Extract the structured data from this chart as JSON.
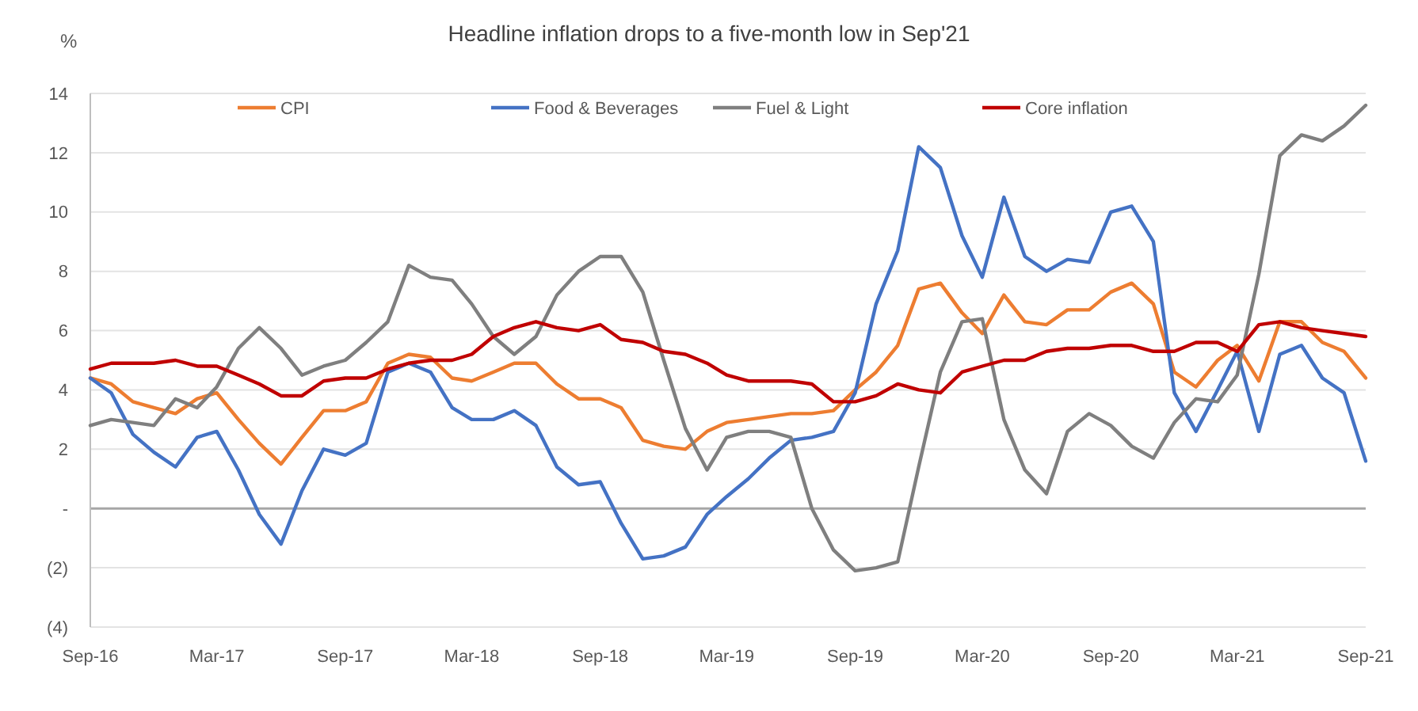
{
  "chart_data": {
    "type": "line",
    "title": "Headline inflation drops to a five-month low in Sep'21",
    "ylabel": "%",
    "x": [
      "2016-09",
      "2016-10",
      "2016-11",
      "2016-12",
      "2017-01",
      "2017-02",
      "2017-03",
      "2017-04",
      "2017-05",
      "2017-06",
      "2017-07",
      "2017-08",
      "2017-09",
      "2017-10",
      "2017-11",
      "2017-12",
      "2018-01",
      "2018-02",
      "2018-03",
      "2018-04",
      "2018-05",
      "2018-06",
      "2018-07",
      "2018-08",
      "2018-09",
      "2018-10",
      "2018-11",
      "2018-12",
      "2019-01",
      "2019-02",
      "2019-03",
      "2019-04",
      "2019-05",
      "2019-06",
      "2019-07",
      "2019-08",
      "2019-09",
      "2019-10",
      "2019-11",
      "2019-12",
      "2020-01",
      "2020-02",
      "2020-03",
      "2020-04",
      "2020-05",
      "2020-06",
      "2020-07",
      "2020-08",
      "2020-09",
      "2020-10",
      "2020-11",
      "2020-12",
      "2021-01",
      "2021-02",
      "2021-03",
      "2021-04",
      "2021-05",
      "2021-06",
      "2021-07",
      "2021-08",
      "2021-09"
    ],
    "series": [
      {
        "name": "CPI",
        "color": "#ed7d31",
        "values": [
          4.4,
          4.2,
          3.6,
          3.4,
          3.2,
          3.7,
          3.9,
          3.0,
          2.2,
          1.5,
          2.4,
          3.3,
          3.3,
          3.6,
          4.9,
          5.2,
          5.1,
          4.4,
          4.3,
          4.6,
          4.9,
          4.9,
          4.2,
          3.7,
          3.7,
          3.4,
          2.3,
          2.1,
          2.0,
          2.6,
          2.9,
          3.0,
          3.1,
          3.2,
          3.2,
          3.3,
          4.0,
          4.6,
          5.5,
          7.4,
          7.6,
          6.6,
          5.9,
          7.2,
          6.3,
          6.2,
          6.7,
          6.7,
          7.3,
          7.6,
          6.9,
          4.6,
          4.1,
          5.0,
          5.5,
          4.3,
          6.3,
          6.3,
          5.6,
          5.3,
          4.4
        ]
      },
      {
        "name": "Food & Beverages",
        "color": "#4472c4",
        "values": [
          4.4,
          3.9,
          2.5,
          1.9,
          1.4,
          2.4,
          2.6,
          1.3,
          -0.2,
          -1.2,
          0.6,
          2.0,
          1.8,
          2.2,
          4.6,
          4.9,
          4.6,
          3.4,
          3.0,
          3.0,
          3.3,
          2.8,
          1.4,
          0.8,
          0.9,
          -0.5,
          -1.7,
          -1.6,
          -1.3,
          -0.2,
          0.4,
          1.0,
          1.7,
          2.3,
          2.4,
          2.6,
          3.9,
          6.9,
          8.7,
          12.2,
          11.5,
          9.2,
          7.8,
          10.5,
          8.5,
          8.0,
          8.4,
          8.3,
          10.0,
          10.2,
          9.0,
          3.9,
          2.6,
          4.0,
          5.3,
          2.6,
          5.2,
          5.5,
          4.4,
          3.9,
          1.6
        ]
      },
      {
        "name": "Fuel & Light",
        "color": "#7f7f7f",
        "values": [
          2.8,
          3.0,
          2.9,
          2.8,
          3.7,
          3.4,
          4.1,
          5.4,
          6.1,
          5.4,
          4.5,
          4.8,
          5.0,
          5.6,
          6.3,
          8.2,
          7.8,
          7.7,
          6.9,
          5.8,
          5.2,
          5.8,
          7.2,
          8.0,
          8.5,
          8.5,
          7.3,
          5.0,
          2.7,
          1.3,
          2.4,
          2.6,
          2.6,
          2.4,
          0.0,
          -1.4,
          -2.1,
          -2.0,
          -1.8,
          1.4,
          4.6,
          6.3,
          6.4,
          3.0,
          1.3,
          0.5,
          2.6,
          3.2,
          2.8,
          2.1,
          1.7,
          2.9,
          3.7,
          3.6,
          4.5,
          7.9,
          11.9,
          12.6,
          12.4,
          12.9,
          13.6
        ]
      },
      {
        "name": "Core inflation",
        "color": "#c00000",
        "values": [
          4.7,
          4.9,
          4.9,
          4.9,
          5.0,
          4.8,
          4.8,
          4.5,
          4.2,
          3.8,
          3.8,
          4.3,
          4.4,
          4.4,
          4.7,
          4.9,
          5.0,
          5.0,
          5.2,
          5.8,
          6.1,
          6.3,
          6.1,
          6.0,
          6.2,
          5.7,
          5.6,
          5.3,
          5.2,
          4.9,
          4.5,
          4.3,
          4.3,
          4.3,
          4.2,
          3.6,
          3.6,
          3.8,
          4.2,
          4.0,
          3.9,
          4.6,
          4.8,
          5.0,
          5.0,
          5.3,
          5.4,
          5.4,
          5.5,
          5.5,
          5.3,
          5.3,
          5.6,
          5.6,
          5.3,
          6.2,
          6.3,
          6.1,
          6.0,
          5.9,
          5.8
        ]
      }
    ],
    "xlim": [
      "2016-09",
      "2021-09"
    ],
    "xticks": [
      {
        "value": "2016-09",
        "label": "Sep-16"
      },
      {
        "value": "2017-03",
        "label": "Mar-17"
      },
      {
        "value": "2017-09",
        "label": "Sep-17"
      },
      {
        "value": "2018-03",
        "label": "Mar-18"
      },
      {
        "value": "2018-09",
        "label": "Sep-18"
      },
      {
        "value": "2019-03",
        "label": "Mar-19"
      },
      {
        "value": "2019-09",
        "label": "Sep-19"
      },
      {
        "value": "2020-03",
        "label": "Mar-20"
      },
      {
        "value": "2020-09",
        "label": "Sep-20"
      },
      {
        "value": "2021-03",
        "label": "Mar-21"
      },
      {
        "value": "2021-09",
        "label": "Sep-21"
      }
    ],
    "ylim": [
      -4,
      14
    ],
    "yticks": [
      {
        "value": -4,
        "label": "(4)"
      },
      {
        "value": -2,
        "label": "(2)"
      },
      {
        "value": 0,
        "label": "-"
      },
      2,
      4,
      6,
      8,
      10,
      12,
      14
    ],
    "grid": "y",
    "legend": "top",
    "marker": "none",
    "line_style": "solid"
  }
}
